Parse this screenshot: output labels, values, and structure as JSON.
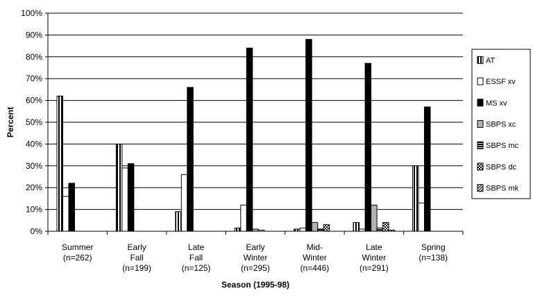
{
  "chart_data": {
    "type": "bar",
    "xlabel": "Season (1995-98)",
    "ylabel": "Percent",
    "ylim": [
      0,
      100
    ],
    "ytick_step": 10,
    "ytick_suffix": "%",
    "grid": true,
    "legend_position": "right",
    "categories": [
      [
        "Summer",
        "(n=262)"
      ],
      [
        "Early",
        "Fall",
        "(n=199)"
      ],
      [
        "Late",
        "Fall",
        "(n=125)"
      ],
      [
        "Early",
        "Winter",
        "(n=295)"
      ],
      [
        "Mid-",
        "Winter",
        "(n=446)"
      ],
      [
        "Late",
        "Winter",
        "(n=291)"
      ],
      [
        "Spring",
        "(n=138)"
      ]
    ],
    "series": [
      {
        "name": "AT",
        "pattern": "vstripe",
        "values": [
          62,
          40,
          9,
          1.5,
          1,
          4,
          30
        ]
      },
      {
        "name": "ESSF xv",
        "pattern": "white",
        "values": [
          16,
          29,
          26,
          12,
          1.5,
          1,
          13
        ]
      },
      {
        "name": "MS xv",
        "pattern": "black",
        "values": [
          22,
          31,
          66,
          84,
          88,
          77,
          57
        ]
      },
      {
        "name": "SBPS xc",
        "pattern": "gray",
        "values": [
          0,
          0,
          0,
          1,
          4,
          12,
          0
        ]
      },
      {
        "name": "SBPS mc",
        "pattern": "hstripe",
        "values": [
          0,
          0,
          0,
          0.5,
          1,
          1.5,
          0
        ]
      },
      {
        "name": "SBPS dc",
        "pattern": "check",
        "values": [
          0,
          0,
          0,
          0,
          3,
          4,
          0
        ]
      },
      {
        "name": "SBPS mk",
        "pattern": "diag",
        "values": [
          0,
          0,
          0,
          0,
          0,
          0.5,
          0
        ]
      }
    ]
  }
}
